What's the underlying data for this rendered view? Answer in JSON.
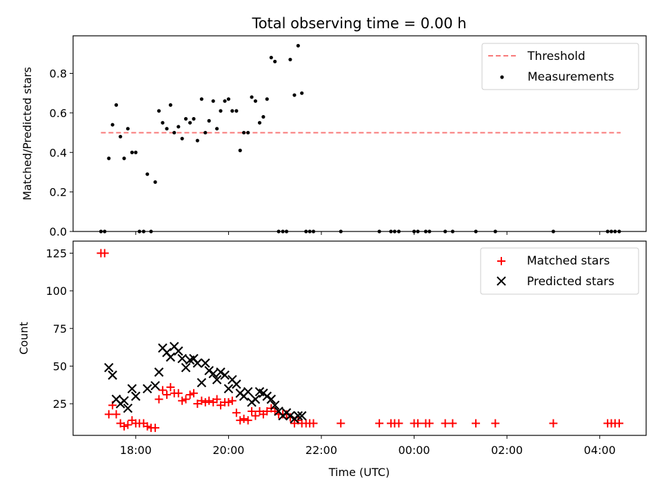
{
  "chart_data": [
    {
      "type": "scatter",
      "title": "Total observing time = 0.00 h",
      "xlabel": "",
      "ylabel": "Matched/Predicted stars",
      "xlim": [
        16.65,
        29.0
      ],
      "ylim": [
        0,
        0.99
      ],
      "yticks": [
        0.0,
        0.2,
        0.4,
        0.6,
        0.8
      ],
      "yticklabels": [
        "0.0",
        "0.2",
        "0.4",
        "0.6",
        "0.8"
      ],
      "xticks": [
        18,
        20,
        22,
        24,
        26,
        28
      ],
      "legend": {
        "position": "top-right"
      },
      "threshold": {
        "name": "Threshold",
        "value": 0.5,
        "x_range": [
          17.25,
          28.45
        ],
        "color": "#f87878"
      },
      "series": [
        {
          "name": "Measurements",
          "color": "#000000",
          "x": [
            17.25,
            17.33,
            17.42,
            17.5,
            17.58,
            17.67,
            17.75,
            17.83,
            17.92,
            18.0,
            18.08,
            18.17,
            18.25,
            18.33,
            18.42,
            18.5,
            18.58,
            18.67,
            18.75,
            18.83,
            18.92,
            19.0,
            19.08,
            19.17,
            19.25,
            19.33,
            19.42,
            19.5,
            19.58,
            19.67,
            19.75,
            19.83,
            19.92,
            20.0,
            20.08,
            20.17,
            20.25,
            20.33,
            20.42,
            20.5,
            20.58,
            20.67,
            20.75,
            20.83,
            20.92,
            21.0,
            21.08,
            21.17,
            21.25,
            21.33,
            21.42,
            21.5,
            21.58,
            21.67,
            21.75,
            21.83,
            22.42,
            23.25,
            23.5,
            23.58,
            23.67,
            24.0,
            24.08,
            24.25,
            24.33,
            24.67,
            24.83,
            25.33,
            25.75,
            27.0,
            28.17,
            28.25,
            28.33,
            28.42
          ],
          "y": [
            0.0,
            0.0,
            0.37,
            0.54,
            0.64,
            0.48,
            0.37,
            0.52,
            0.4,
            0.4,
            0.0,
            0.0,
            0.29,
            0.0,
            0.25,
            0.61,
            0.55,
            0.52,
            0.64,
            0.5,
            0.53,
            0.47,
            0.57,
            0.55,
            0.57,
            0.46,
            0.67,
            0.5,
            0.56,
            0.66,
            0.52,
            0.61,
            0.66,
            0.67,
            0.61,
            0.61,
            0.41,
            0.5,
            0.5,
            0.68,
            0.66,
            0.55,
            0.58,
            0.67,
            0.88,
            0.86,
            0.0,
            0.0,
            0.0,
            0.87,
            0.69,
            0.94,
            0.7,
            0.0,
            0.0,
            0.0,
            0.0,
            0.0,
            0.0,
            0.0,
            0.0,
            0.0,
            0.0,
            0.0,
            0.0,
            0.0,
            0.0,
            0.0,
            0.0,
            0.0,
            0.0,
            0.0,
            0.0,
            0.0
          ]
        }
      ]
    },
    {
      "type": "scatter",
      "title": "",
      "xlabel": "Time (UTC)",
      "ylabel": "Count",
      "xlim": [
        16.65,
        29.0
      ],
      "ylim": [
        4,
        133
      ],
      "yticks": [
        25,
        50,
        75,
        100,
        125
      ],
      "yticklabels": [
        "25",
        "50",
        "75",
        "100",
        "125"
      ],
      "xticks": [
        18,
        20,
        22,
        24,
        26,
        28
      ],
      "xticklabels": [
        "18:00",
        "20:00",
        "22:00",
        "00:00",
        "02:00",
        "04:00"
      ],
      "legend": {
        "position": "top-right"
      },
      "series": [
        {
          "name": "Matched stars",
          "marker": "+",
          "color": "#ff0000",
          "x": [
            17.25,
            17.33,
            17.42,
            17.5,
            17.58,
            17.67,
            17.75,
            17.83,
            17.92,
            18.0,
            18.08,
            18.17,
            18.25,
            18.33,
            18.42,
            18.5,
            18.58,
            18.67,
            18.75,
            18.83,
            18.92,
            19.0,
            19.08,
            19.17,
            19.25,
            19.33,
            19.42,
            19.5,
            19.58,
            19.67,
            19.75,
            19.83,
            19.92,
            20.0,
            20.08,
            20.17,
            20.25,
            20.33,
            20.42,
            20.5,
            20.58,
            20.67,
            20.75,
            20.83,
            20.92,
            21.0,
            21.08,
            21.17,
            21.25,
            21.33,
            21.42,
            21.5,
            21.58,
            21.67,
            21.75,
            21.83,
            22.42,
            23.25,
            23.5,
            23.58,
            23.67,
            24.0,
            24.08,
            24.25,
            24.33,
            24.67,
            24.83,
            25.33,
            25.75,
            27.0,
            28.17,
            28.25,
            28.33,
            28.42
          ],
          "y": [
            125,
            125,
            18,
            24,
            18,
            12,
            10,
            11,
            14,
            12,
            12,
            12,
            10,
            9,
            9,
            28,
            34,
            31,
            36,
            32,
            32,
            27,
            28,
            31,
            32,
            25,
            27,
            26,
            27,
            26,
            28,
            24,
            26,
            26,
            27,
            19,
            14,
            15,
            14,
            20,
            17,
            20,
            18,
            20,
            22,
            20,
            18,
            18,
            18,
            16,
            12,
            14,
            12,
            12,
            12,
            12,
            12,
            12,
            12,
            12,
            12,
            12,
            12,
            12,
            12,
            12,
            12,
            12,
            12,
            12,
            12,
            12,
            12,
            12
          ]
        },
        {
          "name": "Predicted stars",
          "marker": "x",
          "color": "#000000",
          "x": [
            17.42,
            17.5,
            17.58,
            17.67,
            17.75,
            17.83,
            17.92,
            18.0,
            18.25,
            18.42,
            18.5,
            18.58,
            18.67,
            18.75,
            18.83,
            18.92,
            19.0,
            19.08,
            19.17,
            19.25,
            19.33,
            19.42,
            19.5,
            19.58,
            19.67,
            19.75,
            19.83,
            19.92,
            20.0,
            20.08,
            20.17,
            20.25,
            20.33,
            20.42,
            20.5,
            20.58,
            20.67,
            20.75,
            20.83,
            20.92,
            21.0,
            21.08,
            21.17,
            21.25,
            21.33,
            21.42,
            21.5,
            21.58
          ],
          "y": [
            49,
            44,
            28,
            25,
            27,
            22,
            35,
            30,
            35,
            37,
            46,
            62,
            59,
            56,
            63,
            60,
            55,
            49,
            54,
            55,
            52,
            39,
            52,
            47,
            45,
            41,
            46,
            44,
            35,
            41,
            38,
            32,
            30,
            33,
            26,
            28,
            33,
            32,
            30,
            28,
            24,
            20,
            17,
            19,
            17,
            15,
            17,
            17
          ]
        }
      ]
    }
  ]
}
